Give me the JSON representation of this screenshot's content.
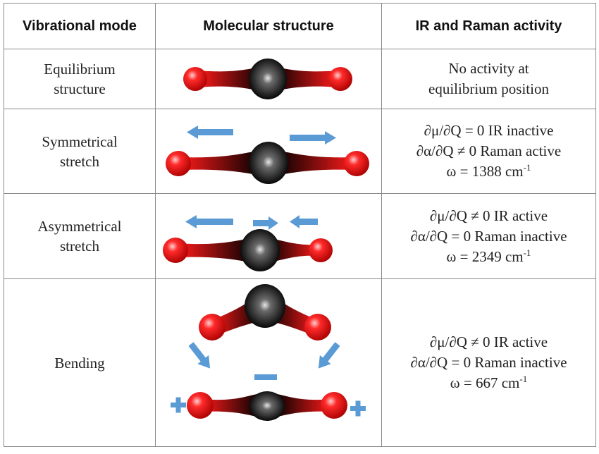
{
  "headers": {
    "mode": "Vibrational mode",
    "structure": "Molecular structure",
    "activity": "IR and Raman activity"
  },
  "rows": [
    {
      "mode_lines": [
        "Equilibrium",
        "structure"
      ],
      "activity_lines": [
        "No activity at",
        "equilibrium position"
      ]
    },
    {
      "mode_lines": [
        "Symmetrical",
        "stretch"
      ],
      "ir": "∂μ/∂Q = 0 IR inactive",
      "raman": "∂α/∂Q ≠ 0 Raman active",
      "omega": "ω = 1388 cm",
      "omega_unit_exp": "-1"
    },
    {
      "mode_lines": [
        "Asymmetrical",
        "stretch"
      ],
      "ir": "∂μ/∂Q ≠ 0 IR active",
      "raman": "∂α/∂Q = 0 Raman inactive",
      "omega": "ω = 2349 cm",
      "omega_unit_exp": "-1"
    },
    {
      "mode_lines": [
        "Bending"
      ],
      "ir": "∂μ/∂Q ≠ 0 IR active",
      "raman": "∂α/∂Q = 0 Raman inactive",
      "omega": "ω = 667 cm",
      "omega_unit_exp": "-1"
    }
  ],
  "colors": {
    "oxygen": "#e8161c",
    "carbon": "#1a1a1a",
    "arrow": "#5b9bd5",
    "border": "#8a8a8a"
  },
  "symbols": {
    "minus": "−",
    "plus": "+"
  }
}
